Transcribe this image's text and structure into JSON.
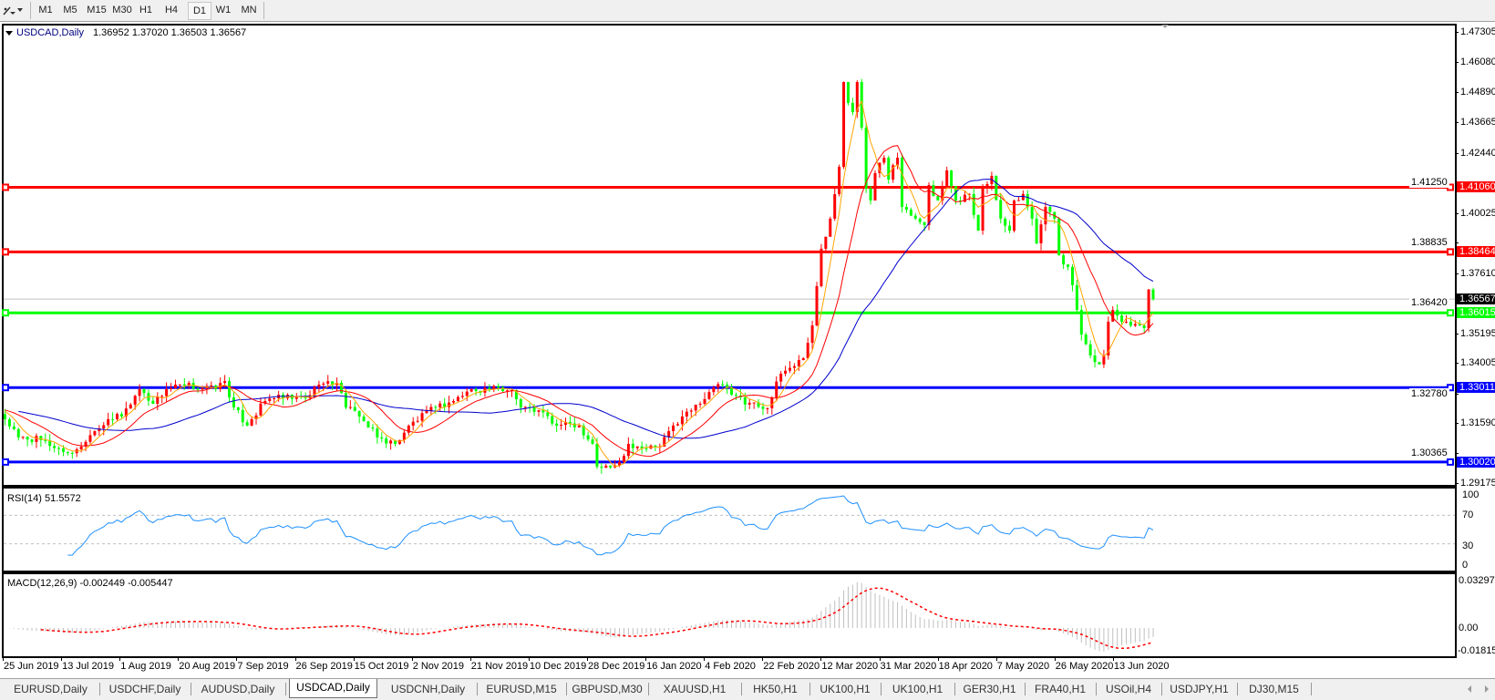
{
  "toolbar": {
    "timeframes": [
      "M1",
      "M5",
      "M15",
      "M30",
      "H1",
      "H4",
      "D1",
      "W1",
      "MN"
    ],
    "active_timeframe": "D1",
    "tools_icon": "line-tools-icon"
  },
  "chart": {
    "title": "USDCAD,Daily",
    "ohlc": "1.36952 1.37020 1.36503 1.36567",
    "bid_label": "1.36567"
  },
  "price_axis": [
    "1.47305",
    "1.46080",
    "1.44890",
    "1.43665",
    "1.42440",
    "1.41250",
    "1.40025",
    "1.38835",
    "1.37610",
    "1.36420",
    "1.35195",
    "1.34005",
    "1.32780",
    "1.31590",
    "1.30365",
    "1.29175"
  ],
  "levels": [
    {
      "price": "1.41060",
      "color": "#ff0000"
    },
    {
      "price": "1.38464",
      "color": "#ff0000"
    },
    {
      "price": "1.36015",
      "color": "#00ff00"
    },
    {
      "price": "1.33011",
      "color": "#0000ff"
    },
    {
      "price": "1.30020",
      "color": "#0000ff"
    }
  ],
  "rsi": {
    "label": "RSI(14) 51.5572",
    "axis": [
      "100",
      "70",
      "30",
      "0"
    ],
    "color": "#1e90ff"
  },
  "macd": {
    "label": "MACD(12,26,9) -0.002449 -0.005447",
    "axis": [
      "0.032972",
      "0.00",
      "-0.018154"
    ],
    "hist_color": "#c0c0c0",
    "signal_color": "#ff0000"
  },
  "date_axis": [
    "25 Jun 2019",
    "13 Jul 2019",
    "1 Aug 2019",
    "20 Aug 2019",
    "7 Sep 2019",
    "26 Sep 2019",
    "15 Oct 2019",
    "2 Nov 2019",
    "21 Nov 2019",
    "10 Dec 2019",
    "28 Dec 2019",
    "16 Jan 2020",
    "4 Feb 2020",
    "22 Feb 2020",
    "12 Mar 2020",
    "31 Mar 2020",
    "18 Apr 2020",
    "7 May 2020",
    "26 May 2020",
    "13 Jun 2020"
  ],
  "tabs": [
    "EURUSD,Daily",
    "USDCHF,Daily",
    "AUDUSD,Daily",
    "USDCAD,Daily",
    "USDCNH,Daily",
    "EURUSD,M15",
    "GBPUSD,M30",
    "XAUUSD,H1",
    "HK50,H1",
    "UK100,H1",
    "UK100,H1",
    "GER30,H1",
    "FRA40,H1",
    "USOil,H4",
    "USDJPY,H1",
    "DJ30,M15"
  ],
  "active_tab": "USDCAD,Daily",
  "chart_data": {
    "type": "candlestick",
    "symbol": "USDCAD",
    "timeframe": "Daily",
    "ylim": [
      1.29175,
      1.47305
    ],
    "colors": {
      "bull": "#ff0000",
      "bear": "#00ff00",
      "ma_fast": "#ffa500",
      "ma_mid": "#ff0000",
      "ma_slow": "#0000cd",
      "bid_line": "#c0c0c0"
    },
    "last_bar": {
      "open": 1.36952,
      "high": 1.3702,
      "low": 1.36503,
      "close": 1.36567
    },
    "close_anchors": [
      [
        0,
        1.3174
      ],
      [
        3,
        1.3101
      ],
      [
        8,
        1.309
      ],
      [
        14,
        1.3038
      ],
      [
        16,
        1.3053
      ],
      [
        20,
        1.3126
      ],
      [
        23,
        1.3174
      ],
      [
        26,
        1.3185
      ],
      [
        30,
        1.3295
      ],
      [
        33,
        1.3236
      ],
      [
        36,
        1.3295
      ],
      [
        40,
        1.3309
      ],
      [
        47,
        1.3295
      ],
      [
        49,
        1.3327
      ],
      [
        51,
        1.3221
      ],
      [
        54,
        1.3148
      ],
      [
        55,
        1.3174
      ],
      [
        58,
        1.3247
      ],
      [
        60,
        1.3258
      ],
      [
        67,
        1.3258
      ],
      [
        70,
        1.3313
      ],
      [
        74,
        1.332
      ],
      [
        76,
        1.3221
      ],
      [
        79,
        1.3185
      ],
      [
        83,
        1.3101
      ],
      [
        87,
        1.3075
      ],
      [
        90,
        1.3148
      ],
      [
        96,
        1.3221
      ],
      [
        100,
        1.3247
      ],
      [
        104,
        1.3295
      ],
      [
        108,
        1.3295
      ],
      [
        113,
        1.3291
      ],
      [
        115,
        1.3221
      ],
      [
        119,
        1.321
      ],
      [
        123,
        1.3148
      ],
      [
        125,
        1.3163
      ],
      [
        128,
        1.3148
      ],
      [
        131,
        1.3075
      ],
      [
        132,
        1.2983
      ],
      [
        135,
        1.298
      ],
      [
        137,
        1.3002
      ],
      [
        139,
        1.3075
      ],
      [
        142,
        1.3057
      ],
      [
        146,
        1.3064
      ],
      [
        148,
        1.3126
      ],
      [
        151,
        1.3185
      ],
      [
        155,
        1.3236
      ],
      [
        157,
        1.3283
      ],
      [
        160,
        1.3313
      ],
      [
        162,
        1.3272
      ],
      [
        166,
        1.324
      ],
      [
        170,
        1.3218
      ],
      [
        173,
        1.3357
      ],
      [
        178,
        1.3419
      ],
      [
        180,
        1.3551
      ],
      [
        182,
        1.3859
      ],
      [
        184,
        1.398
      ],
      [
        186,
        1.4188
      ],
      [
        187,
        1.4529
      ],
      [
        188,
        1.4445
      ],
      [
        189,
        1.4408
      ],
      [
        190,
        1.4529
      ],
      [
        191,
        1.4346
      ],
      [
        192,
        1.4101
      ],
      [
        193,
        1.4053
      ],
      [
        194,
        1.4163
      ],
      [
        196,
        1.4225
      ],
      [
        197,
        1.4137
      ],
      [
        199,
        1.4225
      ],
      [
        200,
        1.4027
      ],
      [
        203,
        1.398
      ],
      [
        205,
        1.3954
      ],
      [
        206,
        1.4115
      ],
      [
        208,
        1.4053
      ],
      [
        210,
        1.4174
      ],
      [
        212,
        1.4053
      ],
      [
        215,
        1.4079
      ],
      [
        217,
        1.3932
      ],
      [
        218,
        1.4101
      ],
      [
        220,
        1.4152
      ],
      [
        222,
        1.398
      ],
      [
        224,
        1.3932
      ],
      [
        225,
        1.4053
      ],
      [
        227,
        1.4079
      ],
      [
        229,
        1.398
      ],
      [
        230,
        1.3881
      ],
      [
        232,
        1.4027
      ],
      [
        234,
        1.398
      ],
      [
        235,
        1.3833
      ],
      [
        237,
        1.3786
      ],
      [
        239,
        1.3613
      ],
      [
        240,
        1.3514
      ],
      [
        242,
        1.343
      ],
      [
        244,
        1.3394
      ],
      [
        245,
        1.343
      ],
      [
        246,
        1.3566
      ],
      [
        247,
        1.3613
      ],
      [
        249,
        1.3566
      ],
      [
        250,
        1.3566
      ],
      [
        253,
        1.3551
      ],
      [
        254,
        1.354
      ],
      [
        255,
        1.36952
      ],
      [
        256,
        1.36567
      ]
    ]
  }
}
